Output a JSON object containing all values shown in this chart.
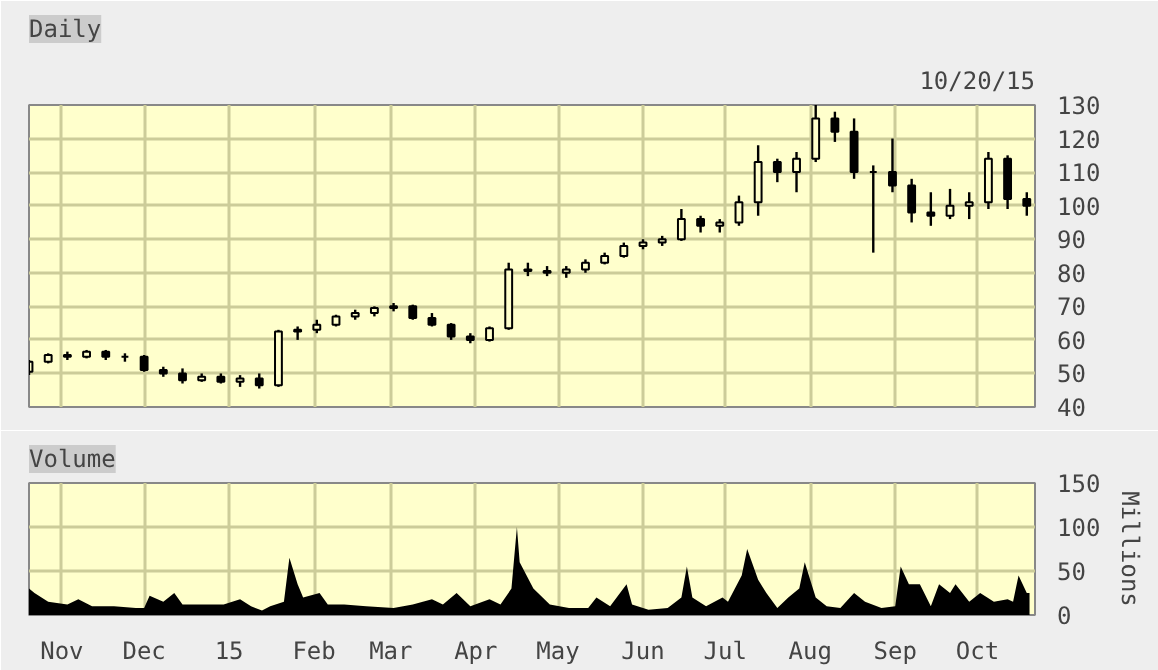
{
  "chart_data": [
    {
      "type": "candlestick",
      "title": "Daily",
      "annotations": [
        "10/20/15"
      ],
      "x": [
        "2014-10-20",
        "2014-10-27",
        "2014-11-03",
        "2014-11-10",
        "2014-11-17",
        "2014-11-24",
        "2014-12-01",
        "2014-12-08",
        "2014-12-15",
        "2014-12-22",
        "2014-12-29",
        "2015-01-05",
        "2015-01-12",
        "2015-01-19",
        "2015-01-26",
        "2015-02-02",
        "2015-02-09",
        "2015-02-16",
        "2015-02-23",
        "2015-03-02",
        "2015-03-09",
        "2015-03-16",
        "2015-03-23",
        "2015-03-30",
        "2015-04-06",
        "2015-04-13",
        "2015-04-20",
        "2015-04-27",
        "2015-05-04",
        "2015-05-11",
        "2015-05-18",
        "2015-05-25",
        "2015-06-01",
        "2015-06-08",
        "2015-06-15",
        "2015-06-22",
        "2015-06-29",
        "2015-07-06",
        "2015-07-13",
        "2015-07-20",
        "2015-07-27",
        "2015-08-03",
        "2015-08-10",
        "2015-08-17",
        "2015-08-24",
        "2015-08-31",
        "2015-09-07",
        "2015-09-14",
        "2015-09-21",
        "2015-09-28",
        "2015-10-05",
        "2015-10-12",
        "2015-10-19"
      ],
      "ohlc": [
        [
          50.5,
          54,
          49.5,
          53.5
        ],
        [
          53.5,
          56,
          53,
          55.5
        ],
        [
          55.5,
          56.5,
          54,
          55
        ],
        [
          55,
          57,
          54.5,
          56.5
        ],
        [
          56.5,
          57,
          54,
          55
        ],
        [
          55,
          56,
          53.5,
          55
        ],
        [
          55,
          55.5,
          50.5,
          51
        ],
        [
          51,
          52,
          49,
          50
        ],
        [
          50,
          51.5,
          47,
          48
        ],
        [
          48,
          50,
          47.5,
          49
        ],
        [
          49,
          50,
          47,
          47.5
        ],
        [
          47.5,
          49.5,
          46,
          48.5
        ],
        [
          48.5,
          50,
          45.5,
          46.5
        ],
        [
          46.5,
          63,
          46,
          62.5
        ],
        [
          62.5,
          64,
          60,
          63
        ],
        [
          63,
          66,
          62,
          64.5
        ],
        [
          64.5,
          67.5,
          64,
          67
        ],
        [
          67,
          69,
          66,
          68
        ],
        [
          68,
          70,
          67,
          69.5
        ],
        [
          69.5,
          71,
          68.5,
          70
        ],
        [
          70,
          70.5,
          66,
          66.5
        ],
        [
          66.5,
          68,
          64,
          64.5
        ],
        [
          64.5,
          65,
          60,
          61
        ],
        [
          61,
          62,
          59,
          60
        ],
        [
          60,
          64,
          59.5,
          63.5
        ],
        [
          63.5,
          83,
          63,
          81
        ],
        [
          81,
          83,
          79,
          80.5
        ],
        [
          80.5,
          82,
          79,
          80
        ],
        [
          80,
          82,
          78.5,
          81
        ],
        [
          81,
          84,
          80,
          83
        ],
        [
          83,
          86,
          82.5,
          85
        ],
        [
          85,
          89,
          84.5,
          88
        ],
        [
          88,
          90,
          87,
          89
        ],
        [
          89,
          91,
          88,
          90
        ],
        [
          90,
          99,
          89.5,
          96
        ],
        [
          96,
          97,
          92,
          94
        ],
        [
          94,
          96,
          92,
          95
        ],
        [
          95,
          103,
          94,
          101
        ],
        [
          101,
          118,
          97,
          113
        ],
        [
          113,
          114,
          107,
          110
        ],
        [
          110,
          116,
          104,
          114
        ],
        [
          114,
          130,
          113,
          126
        ],
        [
          126,
          128,
          119,
          122
        ],
        [
          122,
          126,
          108,
          110
        ],
        [
          110,
          112,
          86,
          110
        ],
        [
          110,
          120,
          104,
          106
        ],
        [
          106,
          108,
          95,
          98
        ],
        [
          98,
          104,
          94,
          97
        ],
        [
          97,
          105,
          96,
          100
        ],
        [
          100,
          104,
          96,
          101
        ],
        [
          101,
          116,
          99,
          114
        ],
        [
          114,
          115,
          99,
          102
        ],
        [
          102,
          104,
          97,
          100
        ]
      ],
      "color": "#000000",
      "xlim": [
        "2014-10-20",
        "2015-10-22"
      ],
      "xticks": [
        {
          "value": "2014-11-01",
          "label": null
        },
        {
          "value": "2014-12-01",
          "label": null
        },
        {
          "value": "2015-01-01",
          "label": null
        },
        {
          "value": "2015-02-01",
          "label": null
        },
        {
          "value": "2015-03-01",
          "label": null
        },
        {
          "value": "2015-04-01",
          "label": null
        },
        {
          "value": "2015-05-01",
          "label": null
        },
        {
          "value": "2015-06-01",
          "label": null
        },
        {
          "value": "2015-07-01",
          "label": null
        },
        {
          "value": "2015-08-01",
          "label": null
        },
        {
          "value": "2015-09-01",
          "label": null
        },
        {
          "value": "2015-10-01",
          "label": null
        }
      ],
      "ylim": [
        40,
        130
      ],
      "yticks": [
        40,
        50,
        60,
        70,
        80,
        90,
        100,
        110,
        120,
        130
      ],
      "grid": true,
      "tick_labels": "y"
    },
    {
      "type": "area",
      "title": "Volume",
      "ylabel": "Millions",
      "x": [
        "2014-10-20",
        "2014-10-22",
        "2014-10-27",
        "2014-11-03",
        "2014-11-07",
        "2014-11-12",
        "2014-11-20",
        "2014-11-28",
        "2014-12-01",
        "2014-12-03",
        "2014-12-08",
        "2014-12-12",
        "2014-12-15",
        "2014-12-22",
        "2014-12-30",
        "2015-01-05",
        "2015-01-09",
        "2015-01-13",
        "2015-01-16",
        "2015-01-21",
        "2015-01-23",
        "2015-01-26",
        "2015-01-28",
        "2015-02-03",
        "2015-02-06",
        "2015-02-12",
        "2015-02-20",
        "2015-03-02",
        "2015-03-09",
        "2015-03-16",
        "2015-03-20",
        "2015-03-25",
        "2015-03-30",
        "2015-04-06",
        "2015-04-10",
        "2015-04-14",
        "2015-04-16",
        "2015-04-17",
        "2015-04-22",
        "2015-04-28",
        "2015-05-05",
        "2015-05-12",
        "2015-05-15",
        "2015-05-20",
        "2015-05-26",
        "2015-05-28",
        "2015-06-03",
        "2015-06-10",
        "2015-06-15",
        "2015-06-17",
        "2015-06-19",
        "2015-06-24",
        "2015-06-30",
        "2015-07-02",
        "2015-07-07",
        "2015-07-09",
        "2015-07-13",
        "2015-07-16",
        "2015-07-20",
        "2015-07-24",
        "2015-07-28",
        "2015-07-30",
        "2015-08-03",
        "2015-08-07",
        "2015-08-12",
        "2015-08-17",
        "2015-08-21",
        "2015-08-27",
        "2015-09-01",
        "2015-09-03",
        "2015-09-06",
        "2015-09-10",
        "2015-09-14",
        "2015-09-17",
        "2015-09-21",
        "2015-09-23",
        "2015-09-28",
        "2015-10-02",
        "2015-10-07",
        "2015-10-12",
        "2015-10-14",
        "2015-10-16",
        "2015-10-19",
        "2015-10-20"
      ],
      "values": [
        30,
        25,
        15,
        12,
        18,
        10,
        10,
        8,
        8,
        22,
        15,
        25,
        12,
        12,
        12,
        18,
        10,
        5,
        10,
        15,
        65,
        35,
        20,
        25,
        12,
        12,
        10,
        8,
        12,
        18,
        12,
        25,
        10,
        18,
        12,
        30,
        100,
        60,
        30,
        12,
        8,
        8,
        20,
        10,
        35,
        12,
        6,
        8,
        20,
        55,
        20,
        10,
        20,
        15,
        45,
        75,
        40,
        25,
        8,
        20,
        30,
        60,
        20,
        10,
        8,
        25,
        15,
        8,
        10,
        55,
        35,
        35,
        10,
        35,
        25,
        35,
        15,
        25,
        15,
        18,
        15,
        45,
        25,
        25
      ],
      "color": "#000000",
      "xlim": [
        "2014-10-20",
        "2015-10-22"
      ],
      "xticks": [
        {
          "value": "2014-11-01",
          "label": "Nov"
        },
        {
          "value": "2014-12-01",
          "label": "Dec"
        },
        {
          "value": "2015-01-01",
          "label": "15"
        },
        {
          "value": "2015-02-01",
          "label": "Feb"
        },
        {
          "value": "2015-03-01",
          "label": "Mar"
        },
        {
          "value": "2015-04-01",
          "label": "Apr"
        },
        {
          "value": "2015-05-01",
          "label": "May"
        },
        {
          "value": "2015-06-01",
          "label": "Jun"
        },
        {
          "value": "2015-07-01",
          "label": "Jul"
        },
        {
          "value": "2015-08-01",
          "label": "Aug"
        },
        {
          "value": "2015-09-01",
          "label": "Sep"
        },
        {
          "value": "2015-10-01",
          "label": "Oct"
        }
      ],
      "ylim": [
        0,
        150
      ],
      "yticks": [
        0,
        50,
        100,
        150
      ],
      "grid": true
    }
  ]
}
